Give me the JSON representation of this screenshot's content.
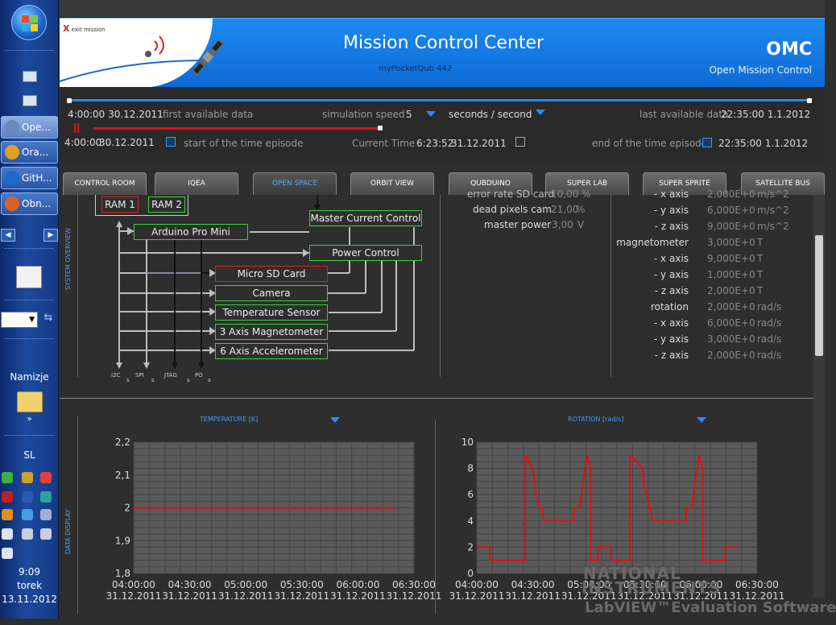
{
  "taskbar": {
    "items": [
      {
        "label": "Ope...",
        "icon": "labview-icon",
        "color": "#6a8ab8",
        "active": true
      },
      {
        "label": "Ora...",
        "icon": "oracle-icon",
        "color": "#e0a020",
        "active": false
      },
      {
        "label": "GitH...",
        "icon": "github-icon",
        "color": "#1a6ad0",
        "active": false
      },
      {
        "label": "Obn...",
        "icon": "firefox-icon",
        "color": "#e06020",
        "active": false
      }
    ],
    "desktop_label": "Namizje",
    "lang": "SL",
    "time": "9:09",
    "day": "torek",
    "date": "13.11.2012"
  },
  "banner": {
    "logo_text": "exit mission",
    "title": "Mission Control Center",
    "subtitle": "myPocketQub 442",
    "abbr": "OMC",
    "abbr_sub": "Open Mission Control"
  },
  "timebar": {
    "first_time": "4:00:00 30.12.2011",
    "first_label": "first available data",
    "speed_label": "simulation speed",
    "speed_value": "5",
    "speed_unit": "seconds / second",
    "last_label": "last available data",
    "last_time": "22:35:00 1.1.2012",
    "start_time": "4:00:00",
    "start_date": "30.12.2011",
    "start_label": "start of the time episode",
    "current_label": "Current Time",
    "current_time": "6:23:52",
    "current_date": "31.12.2011",
    "end_label": "end of the time episode",
    "end_time": "22:35:00 1.1.2012",
    "playback_fraction": 0.42
  },
  "tabs": [
    "CONTROL ROOM",
    "IQEA",
    "OPEN SPACE",
    "ORBIT VIEW",
    "QUBDUINO",
    "SUPER LAB",
    "SUPER SPRITE",
    "SATELLITE BUS"
  ],
  "active_tab": 2,
  "system": {
    "label": "SYSTEM OVERVIEW",
    "ram1": "RAM 1",
    "ram2": "RAM 2",
    "master": "Master Current Control",
    "arduino": "Arduino Pro Mini",
    "power": "Power Control",
    "sd": "Micro SD Card",
    "camera": "Camera",
    "temp": "Temperature Sensor",
    "mag": "3 Axis Magnetometer",
    "acc": "6 Axis Accelerometer",
    "bus_labels": [
      "I2C",
      "SPI",
      "JTAG",
      "PO"
    ],
    "bus_sub": "s"
  },
  "status": {
    "partial_row": {
      "label": "error rate SD card",
      "value": "10,00",
      "unit": "%"
    },
    "dead_pixels": {
      "label": "dead pixels cam",
      "value": "21,00",
      "unit": "%"
    },
    "master_power": {
      "label": "master power",
      "value": "3,00",
      "unit": "V"
    }
  },
  "sensors": [
    {
      "label": "- x axis",
      "value": "2,000E+0",
      "unit": "m/s^2"
    },
    {
      "label": "- y axis",
      "value": "6,000E+0",
      "unit": "m/s^2"
    },
    {
      "label": "- z axis",
      "value": "9,000E+0",
      "unit": "m/s^2"
    },
    {
      "label": "magnetometer",
      "value": "3,000E+0",
      "unit": "T"
    },
    {
      "label": "- x axis",
      "value": "9,000E+0",
      "unit": "T"
    },
    {
      "label": "- y axis",
      "value": "1,000E+0",
      "unit": "T"
    },
    {
      "label": "- z axis",
      "value": "2,000E+0",
      "unit": "T"
    },
    {
      "label": "rotation",
      "value": "2,000E+0",
      "unit": "rad/s"
    },
    {
      "label": "- x axis",
      "value": "6,000E+0",
      "unit": "rad/s"
    },
    {
      "label": "- y axis",
      "value": "3,000E+0",
      "unit": "rad/s"
    },
    {
      "label": "- z axis",
      "value": "2,000E+0",
      "unit": "rad/s"
    }
  ],
  "data_display_label": "DATA DISPLAY",
  "chart_data": [
    {
      "type": "line",
      "title": "TEMPERATURE [K]",
      "y_ticks": [
        "2,2",
        "2,1",
        "2",
        "1,9",
        "1,8"
      ],
      "ylim": [
        1.8,
        2.2
      ],
      "x_ticks": [
        "04:00:00\n31.12.2011",
        "04:30:00\n31.12.2011",
        "05:00:00\n31.12.2011",
        "05:30:00\n31.12.2011",
        "06:00:00\n31.12.2011",
        "06:30:00\n31.12.2011"
      ],
      "x_range_min": [
        0,
        150
      ],
      "series": [
        {
          "color": "#e01010",
          "x": [
            0,
            140
          ],
          "y": [
            2,
            2
          ]
        }
      ]
    },
    {
      "type": "line",
      "title": "ROTATION [rad/s]",
      "y_ticks": [
        "10",
        "8",
        "6",
        "4",
        "2",
        "0"
      ],
      "ylim": [
        0,
        10
      ],
      "x_ticks": [
        "04:00:00\n31.12.2011",
        "04:30:00\n31.12.2011",
        "05:00:00\n31.12.2011",
        "05:30:00\n31.12.2011",
        "06:00:00\n31.12.2011",
        "06:30:00\n31.12.2011"
      ],
      "x_range_min": [
        0,
        150
      ],
      "series": [
        {
          "color": "#e01010",
          "x": [
            0,
            7,
            7,
            26,
            26,
            30,
            31,
            32,
            33,
            35,
            36,
            39,
            39,
            52,
            52,
            55,
            56,
            57,
            58,
            59,
            61,
            61,
            65,
            65,
            72,
            72,
            82,
            82,
            89,
            89,
            91,
            92,
            93,
            94,
            96,
            97,
            99,
            99,
            112,
            112,
            115,
            116,
            117,
            118,
            119,
            121,
            121,
            125,
            125,
            133,
            133,
            140
          ],
          "y": [
            2,
            2,
            1,
            1,
            9,
            8,
            7,
            6,
            5,
            5,
            4,
            4,
            4,
            4,
            5,
            5,
            6,
            7,
            8,
            9,
            8,
            1,
            1,
            2,
            2,
            1,
            1,
            9,
            8,
            7,
            6,
            5,
            5,
            4,
            4,
            4,
            4,
            4,
            4,
            5,
            5,
            6,
            7,
            8,
            9,
            8,
            1,
            1,
            1,
            1,
            2,
            2
          ]
        }
      ]
    }
  ],
  "watermark": {
    "line1": "NATIONAL",
    "line2": "INSTRUMENTS",
    "line3": "LabVIEW™Evaluation Software"
  }
}
